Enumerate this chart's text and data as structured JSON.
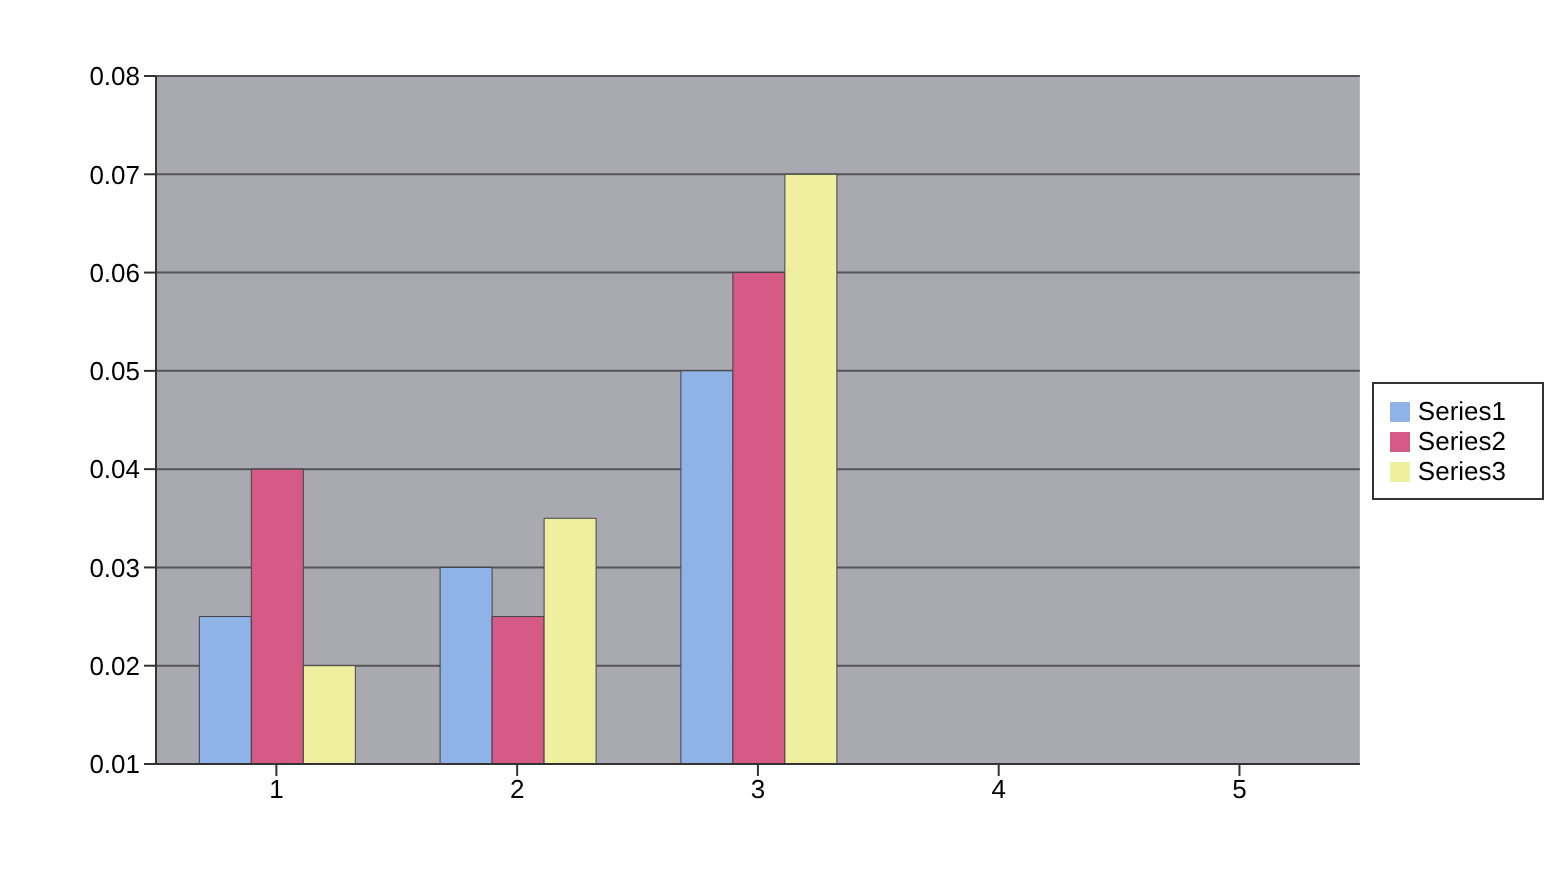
{
  "chart_data": {
    "type": "bar",
    "categories": [
      "1",
      "2",
      "3",
      "4",
      "5"
    ],
    "series": [
      {
        "name": "Series1",
        "color": "#8fb3e6",
        "values": [
          0.025,
          0.03,
          0.05,
          null,
          null
        ]
      },
      {
        "name": "Series2",
        "color": "#d65a86",
        "values": [
          0.04,
          0.025,
          0.06,
          null,
          null
        ]
      },
      {
        "name": "Series3",
        "color": "#eef0a0",
        "values": [
          0.02,
          0.035,
          0.07,
          null,
          null
        ]
      }
    ],
    "ylim": [
      0.01,
      0.08
    ],
    "yticks": [
      0.01,
      0.02,
      0.03,
      0.04,
      0.05,
      0.06,
      0.07,
      0.08
    ],
    "grid": "y",
    "legend": "right"
  }
}
